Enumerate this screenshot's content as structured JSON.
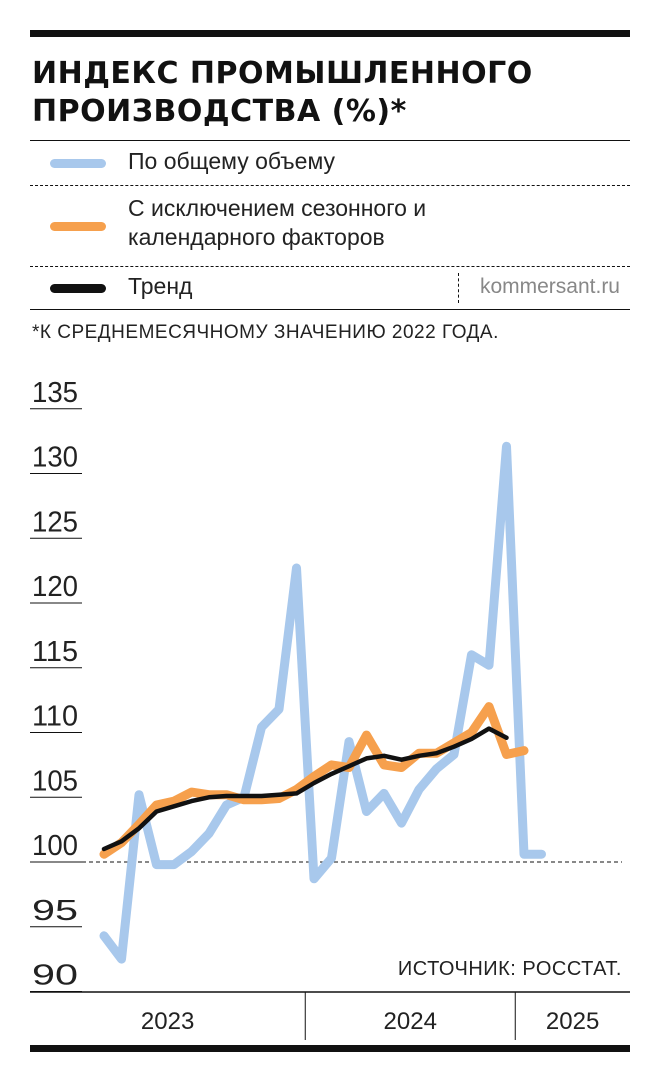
{
  "header": {
    "title": "ИНДЕКС ПРОМЫШЛЕННОГО ПРОИЗВОДСТВА (%)*",
    "footnote": "*К СРЕДНЕМЕСЯЧНОМУ ЗНАЧЕНИЮ 2022 ГОДА.",
    "credit": "kommersant.ru",
    "source": "ИСТОЧНИК: РОССТАТ."
  },
  "legend": [
    {
      "label": "По общему объему",
      "color": "#a8c8ec"
    },
    {
      "label": "С исключением сезонного и календарного факторов",
      "color": "#f6a04d"
    },
    {
      "label": "Тренд",
      "color": "#111111"
    }
  ],
  "colors": {
    "total": "#a8c8ec",
    "seasonal": "#f6a04d",
    "trend": "#111111",
    "text": "#111111"
  },
  "chart_data": {
    "type": "line",
    "title": "ИНДЕКС ПРОМЫШЛЕННОГО ПРОИЗВОДСТВА (%)*",
    "ylim": [
      90,
      135
    ],
    "yticks": [
      90,
      95,
      100,
      105,
      110,
      115,
      120,
      125,
      130,
      135
    ],
    "x_axis": {
      "unit": "month",
      "start": "2023-01",
      "groups": [
        {
          "label": "2023",
          "months": 12
        },
        {
          "label": "2024",
          "months": 12
        },
        {
          "label": "2025",
          "months": 2
        }
      ]
    },
    "reference_line": 100,
    "grid": false,
    "series": [
      {
        "name": "По общему объему",
        "values": [
          94.3,
          92.5,
          105.2,
          99.8,
          99.8,
          100.8,
          102.2,
          104.4,
          105.0,
          110.4,
          111.8,
          122.7,
          98.7,
          100.3,
          109.3,
          103.9,
          105.3,
          103.0,
          105.6,
          107.2,
          108.3,
          116.0,
          115.2,
          132.1,
          100.6,
          100.6
        ],
        "color": "#a8c8ec"
      },
      {
        "name": "С исключением сезонного и календарного факторов",
        "values": [
          100.6,
          101.5,
          102.9,
          104.4,
          104.7,
          105.4,
          105.2,
          105.2,
          104.8,
          104.8,
          104.9,
          105.6,
          106.6,
          107.5,
          107.3,
          109.8,
          107.5,
          107.3,
          108.4,
          108.4,
          109.2,
          110.0,
          112.0,
          108.3,
          108.6
        ],
        "color": "#f6a04d"
      },
      {
        "name": "Тренд",
        "values": [
          101.0,
          101.6,
          102.6,
          103.9,
          104.3,
          104.7,
          105.0,
          105.1,
          105.1,
          105.1,
          105.2,
          105.3,
          106.1,
          106.8,
          107.4,
          108.0,
          108.2,
          107.9,
          108.2,
          108.4,
          108.9,
          109.5,
          110.3,
          109.6
        ],
        "color": "#111111"
      }
    ]
  }
}
